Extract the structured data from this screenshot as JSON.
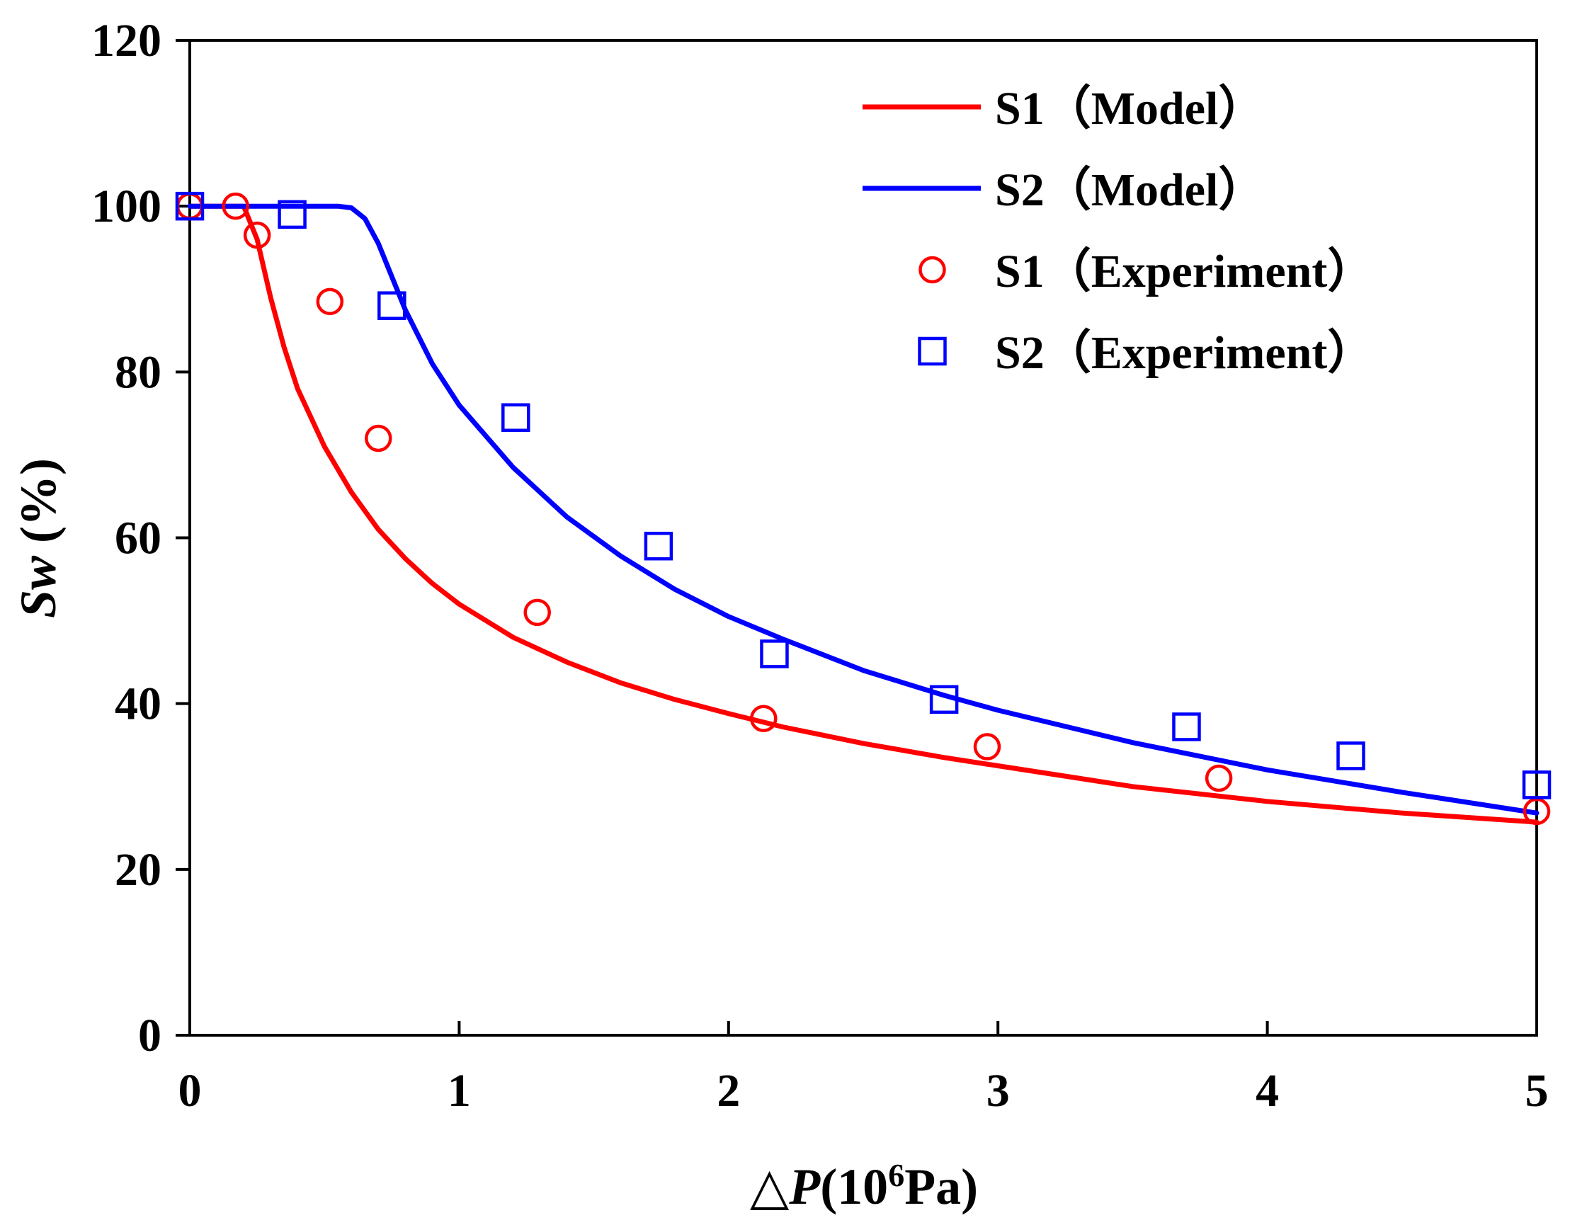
{
  "chart_data": {
    "type": "line",
    "title": "",
    "xlabel_symbol": "△",
    "xlabel_var": "P",
    "xlabel_unit_pre": "(10",
    "xlabel_exp": "6",
    "xlabel_unit_post": "Pa)",
    "ylabel_var": "Sw",
    "ylabel_unit": " (%)",
    "xlim": [
      0,
      5
    ],
    "ylim": [
      0,
      120
    ],
    "xticks": [
      0,
      1,
      2,
      3,
      4,
      5
    ],
    "yticks": [
      0,
      20,
      40,
      60,
      80,
      100,
      120
    ],
    "grid": false,
    "legend_position": "top-right",
    "series": [
      {
        "name": "S1（Model）",
        "kind": "line",
        "color": "#ff0000",
        "x": [
          0,
          0.1,
          0.2,
          0.25,
          0.3,
          0.35,
          0.4,
          0.5,
          0.6,
          0.7,
          0.8,
          0.9,
          1.0,
          1.2,
          1.4,
          1.6,
          1.8,
          2.0,
          2.2,
          2.5,
          2.8,
          3.0,
          3.5,
          4.0,
          4.5,
          5.0
        ],
        "y": [
          100,
          100,
          100,
          96.0,
          89.0,
          83.0,
          78.0,
          71.0,
          65.5,
          61.0,
          57.5,
          54.5,
          52.0,
          48.0,
          45.0,
          42.5,
          40.5,
          38.8,
          37.2,
          35.2,
          33.5,
          32.5,
          30.0,
          28.2,
          26.8,
          25.7
        ]
      },
      {
        "name": "S2（Model）",
        "kind": "line",
        "color": "#0000ff",
        "x": [
          0,
          0.2,
          0.4,
          0.55,
          0.6,
          0.65,
          0.7,
          0.75,
          0.8,
          0.9,
          1.0,
          1.2,
          1.4,
          1.6,
          1.8,
          2.0,
          2.2,
          2.5,
          2.8,
          3.0,
          3.5,
          4.0,
          4.5,
          5.0
        ],
        "y": [
          100,
          100,
          100,
          100,
          99.8,
          98.5,
          95.5,
          91.5,
          87.5,
          81.0,
          76.0,
          68.5,
          62.5,
          57.8,
          53.8,
          50.5,
          47.8,
          44.0,
          41.0,
          39.2,
          35.3,
          32.0,
          29.3,
          26.8
        ]
      },
      {
        "name": "S1（Experiment）",
        "kind": "scatter",
        "marker": "circle",
        "color": "#ff0000",
        "x": [
          0.0,
          0.17,
          0.25,
          0.52,
          0.7,
          1.29,
          2.13,
          2.96,
          3.82,
          5.0
        ],
        "y": [
          100,
          100,
          96.5,
          88.5,
          72.0,
          51.0,
          38.2,
          34.8,
          31.0,
          27.0
        ]
      },
      {
        "name": "S2（Experiment）",
        "kind": "scatter",
        "marker": "square",
        "color": "#0000ff",
        "x": [
          0.0,
          0.38,
          0.75,
          1.21,
          1.74,
          2.17,
          2.8,
          3.7,
          4.31,
          5.0
        ],
        "y": [
          100,
          99.0,
          88.0,
          74.5,
          59.0,
          46.0,
          40.5,
          37.2,
          33.7,
          30.2
        ]
      }
    ]
  }
}
